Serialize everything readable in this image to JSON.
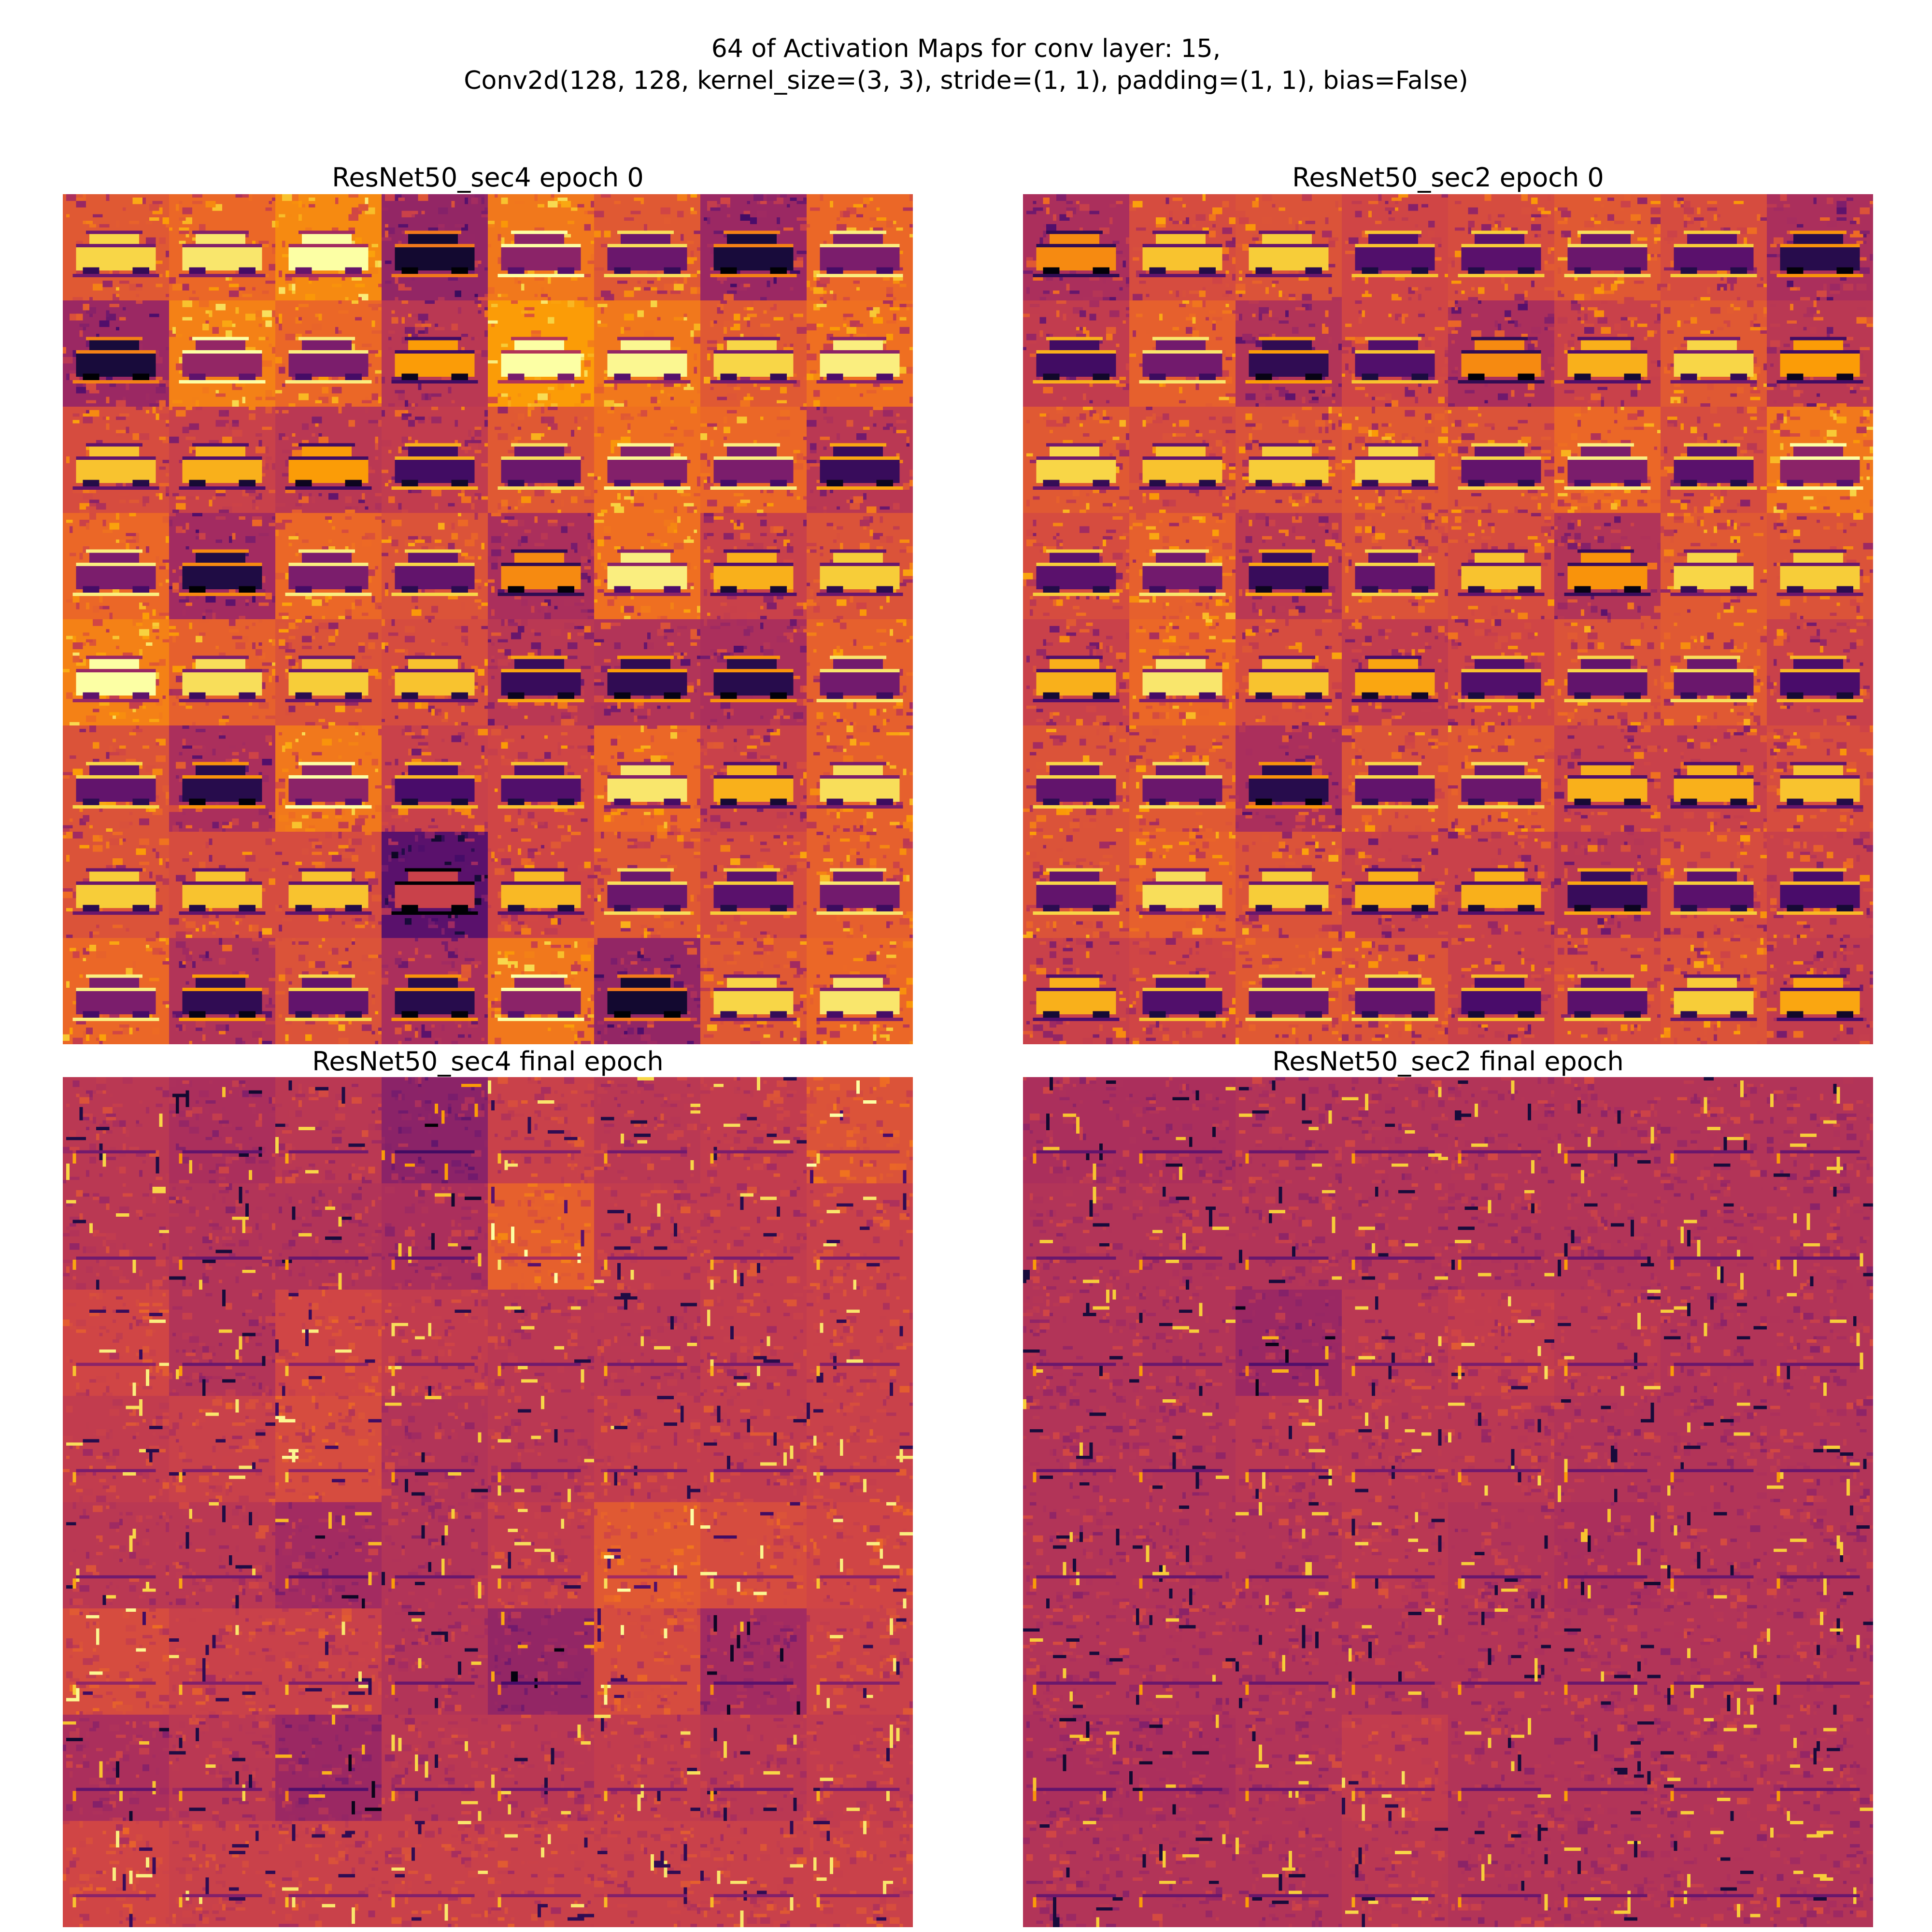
{
  "figure": {
    "title_line1": "64 of Activation Maps for conv layer: 15,",
    "title_line2": "Conv2d(128, 128, kernel_size=(3, 3), stride=(1, 1), padding=(1, 1), bias=False)"
  },
  "colormap": {
    "name": "inferno",
    "stops": [
      "#000004",
      "#1b0c41",
      "#4a0c6b",
      "#781c6d",
      "#a52c60",
      "#cf4446",
      "#ed6925",
      "#fb9b06",
      "#f7d13d",
      "#fcffa4"
    ]
  },
  "chart_data": [
    {
      "type": "heatmap",
      "title": "ResNet50_sec4 epoch 0",
      "rows": 8,
      "cols": 8,
      "tile_mean": [
        [
          0.62,
          0.66,
          0.74,
          0.4,
          0.7,
          0.62,
          0.42,
          0.66
        ],
        [
          0.42,
          0.72,
          0.66,
          0.5,
          0.78,
          0.7,
          0.62,
          0.68
        ],
        [
          0.58,
          0.54,
          0.5,
          0.52,
          0.62,
          0.68,
          0.66,
          0.5
        ],
        [
          0.66,
          0.44,
          0.66,
          0.6,
          0.46,
          0.68,
          0.54,
          0.6
        ],
        [
          0.72,
          0.64,
          0.6,
          0.58,
          0.5,
          0.48,
          0.46,
          0.64
        ],
        [
          0.6,
          0.46,
          0.7,
          0.54,
          0.56,
          0.66,
          0.54,
          0.64
        ],
        [
          0.6,
          0.58,
          0.58,
          0.26,
          0.56,
          0.62,
          0.58,
          0.64
        ],
        [
          0.66,
          0.48,
          0.6,
          0.46,
          0.7,
          0.4,
          0.62,
          0.66
        ]
      ]
    },
    {
      "type": "heatmap",
      "title": "ResNet50_sec2 epoch 0",
      "rows": 8,
      "cols": 8,
      "tile_mean": [
        [
          0.46,
          0.58,
          0.6,
          0.56,
          0.58,
          0.62,
          0.58,
          0.46
        ],
        [
          0.52,
          0.64,
          0.48,
          0.56,
          0.46,
          0.54,
          0.62,
          0.5
        ],
        [
          0.62,
          0.58,
          0.6,
          0.62,
          0.6,
          0.66,
          0.58,
          0.7
        ],
        [
          0.58,
          0.64,
          0.5,
          0.6,
          0.58,
          0.48,
          0.62,
          0.6
        ],
        [
          0.54,
          0.66,
          0.58,
          0.52,
          0.56,
          0.6,
          0.62,
          0.54
        ],
        [
          0.6,
          0.62,
          0.46,
          0.6,
          0.62,
          0.54,
          0.54,
          0.58
        ],
        [
          0.6,
          0.64,
          0.6,
          0.54,
          0.54,
          0.5,
          0.58,
          0.54
        ],
        [
          0.54,
          0.56,
          0.62,
          0.6,
          0.54,
          0.58,
          0.6,
          0.52
        ]
      ]
    },
    {
      "type": "heatmap",
      "title": "ResNet50_sec4 final epoch",
      "rows": 8,
      "cols": 8,
      "tile_mean": [
        [
          0.5,
          0.46,
          0.5,
          0.38,
          0.54,
          0.5,
          0.52,
          0.6
        ],
        [
          0.5,
          0.48,
          0.48,
          0.46,
          0.64,
          0.52,
          0.52,
          0.54
        ],
        [
          0.56,
          0.48,
          0.56,
          0.52,
          0.5,
          0.5,
          0.52,
          0.54
        ],
        [
          0.52,
          0.54,
          0.58,
          0.48,
          0.5,
          0.52,
          0.52,
          0.54
        ],
        [
          0.5,
          0.5,
          0.44,
          0.48,
          0.52,
          0.62,
          0.58,
          0.56
        ],
        [
          0.58,
          0.54,
          0.54,
          0.48,
          0.4,
          0.58,
          0.44,
          0.54
        ],
        [
          0.46,
          0.5,
          0.42,
          0.5,
          0.5,
          0.52,
          0.5,
          0.52
        ],
        [
          0.56,
          0.54,
          0.54,
          0.54,
          0.54,
          0.54,
          0.54,
          0.54
        ]
      ]
    },
    {
      "type": "heatmap",
      "title": "ResNet50_sec2 final epoch",
      "rows": 8,
      "cols": 8,
      "tile_mean": [
        [
          0.46,
          0.46,
          0.48,
          0.48,
          0.48,
          0.48,
          0.48,
          0.48
        ],
        [
          0.48,
          0.48,
          0.48,
          0.48,
          0.48,
          0.48,
          0.48,
          0.48
        ],
        [
          0.48,
          0.48,
          0.42,
          0.5,
          0.52,
          0.5,
          0.48,
          0.48
        ],
        [
          0.48,
          0.48,
          0.5,
          0.5,
          0.5,
          0.48,
          0.48,
          0.48
        ],
        [
          0.48,
          0.48,
          0.48,
          0.5,
          0.48,
          0.46,
          0.48,
          0.48
        ],
        [
          0.48,
          0.48,
          0.48,
          0.48,
          0.48,
          0.48,
          0.48,
          0.48
        ],
        [
          0.46,
          0.46,
          0.48,
          0.52,
          0.48,
          0.48,
          0.48,
          0.48
        ],
        [
          0.48,
          0.48,
          0.48,
          0.5,
          0.48,
          0.48,
          0.48,
          0.48
        ]
      ]
    }
  ]
}
